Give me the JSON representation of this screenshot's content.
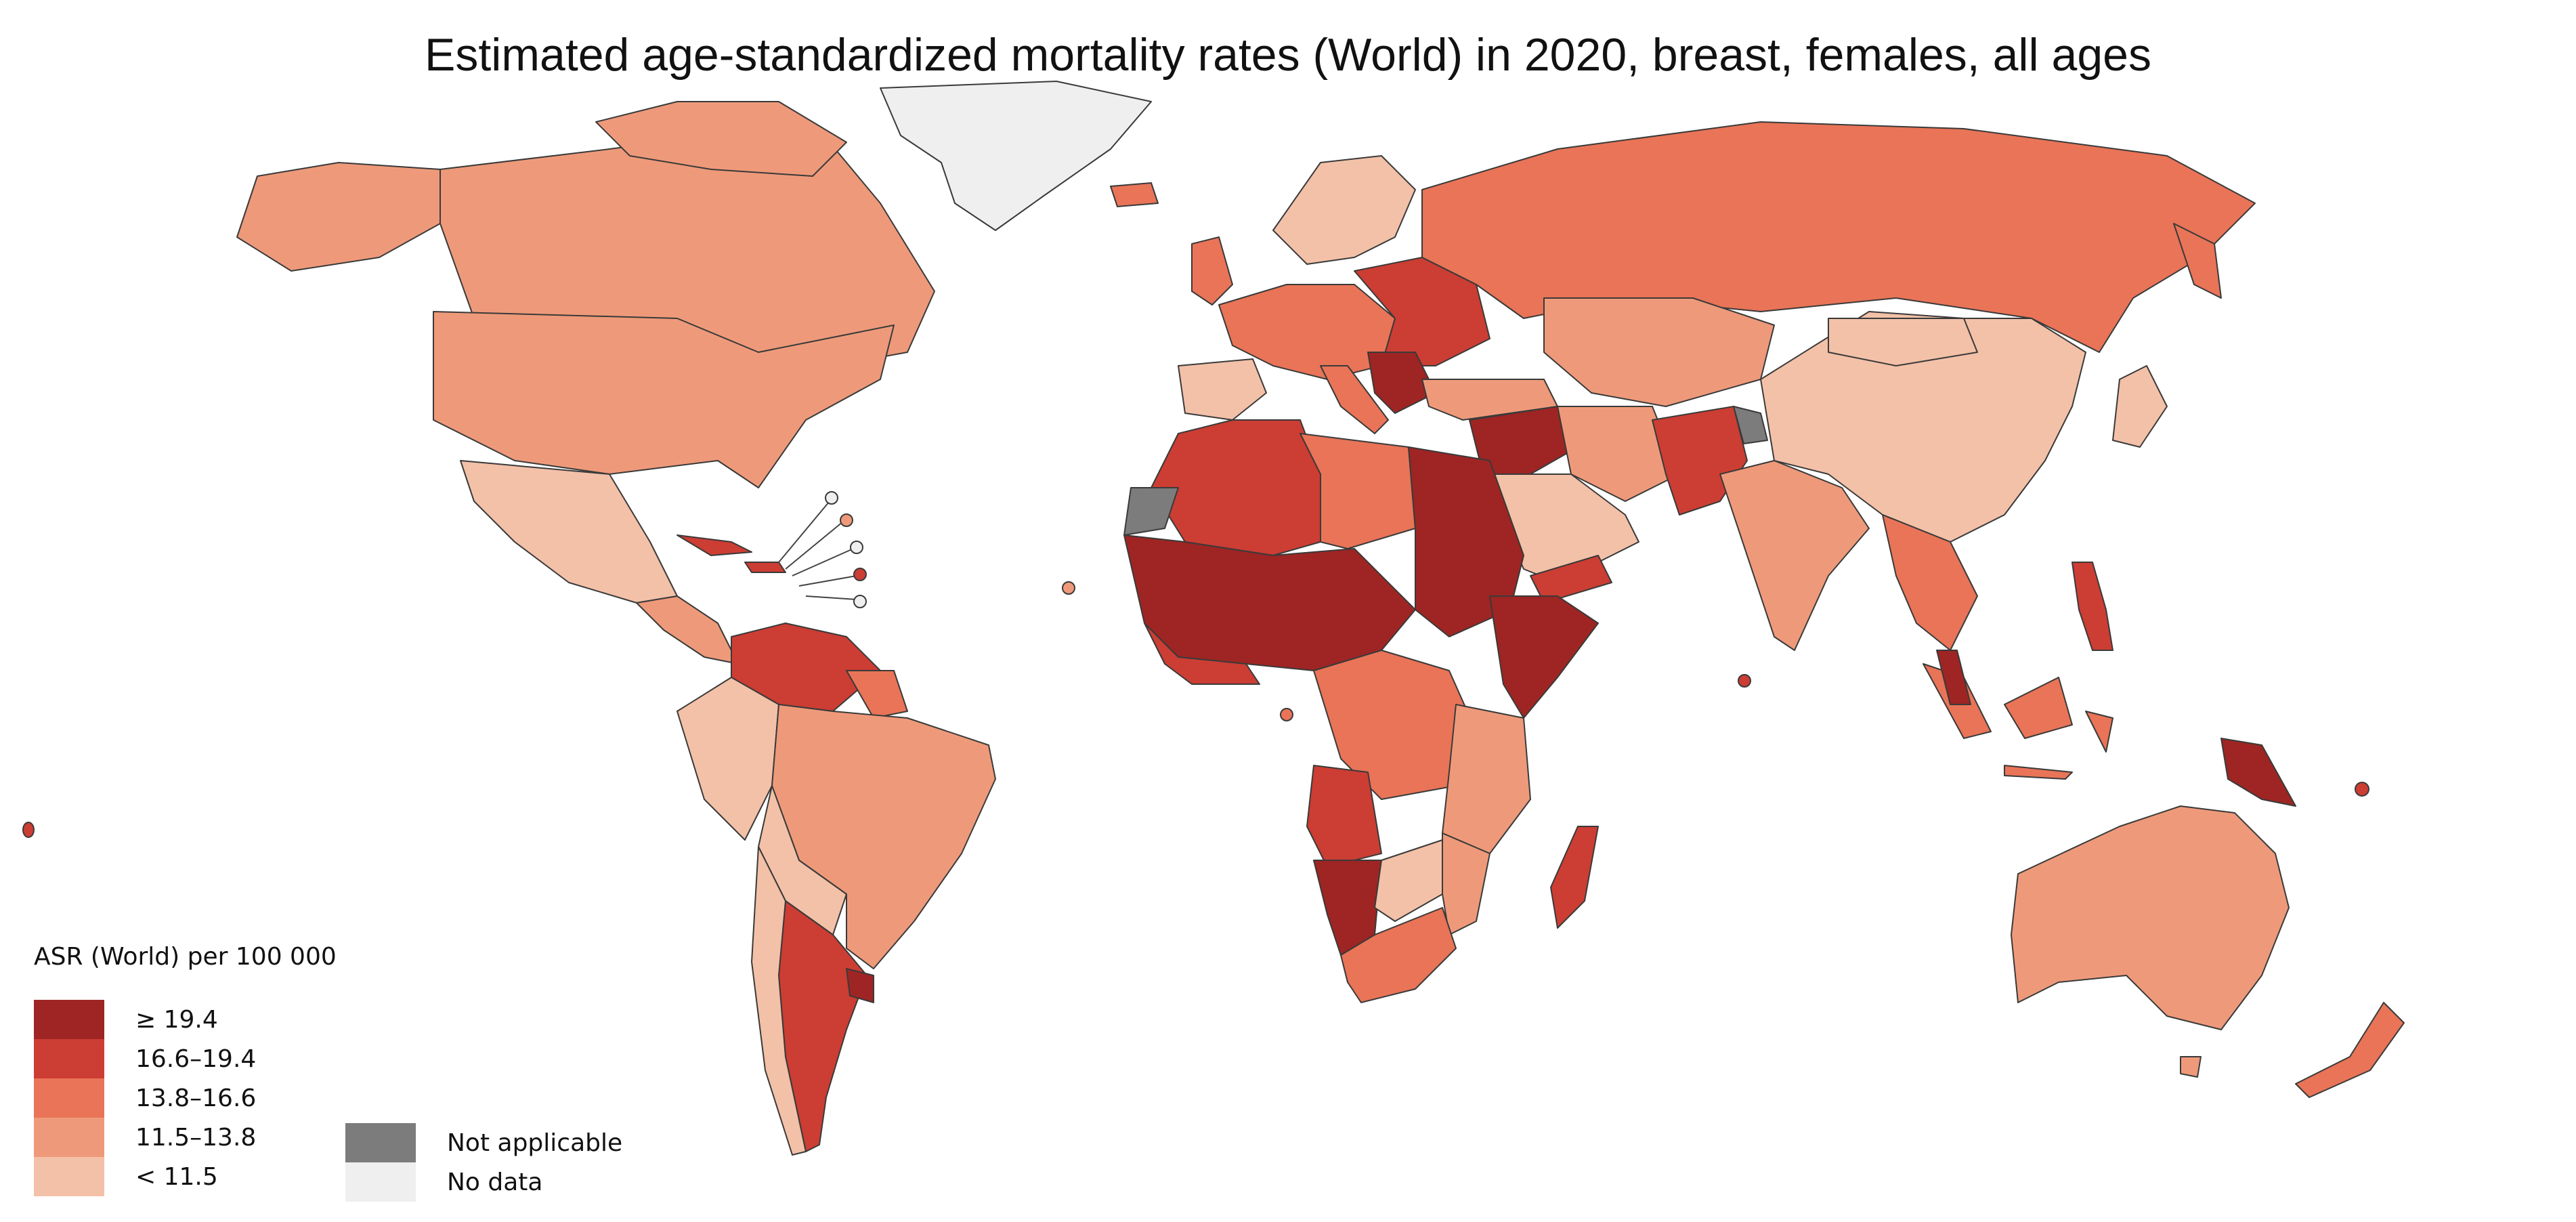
{
  "title": "Estimated age-standardized mortality rates (World) in 2020, breast, females, all ages",
  "legend": {
    "title": "ASR (World) per 100 000",
    "classes": [
      {
        "label": "≥ 19.4",
        "color": "#9e2523"
      },
      {
        "label": "16.6–19.4",
        "color": "#cc3d33"
      },
      {
        "label": "13.8–16.6",
        "color": "#e97457"
      },
      {
        "label": "11.5–13.8",
        "color": "#ee9a7a"
      },
      {
        "label": "< 11.5",
        "color": "#f3c1a8"
      }
    ],
    "special": [
      {
        "label": "Not applicable",
        "color": "#7c7c7c"
      },
      {
        "label": "No data",
        "color": "#efefef"
      }
    ]
  }
}
